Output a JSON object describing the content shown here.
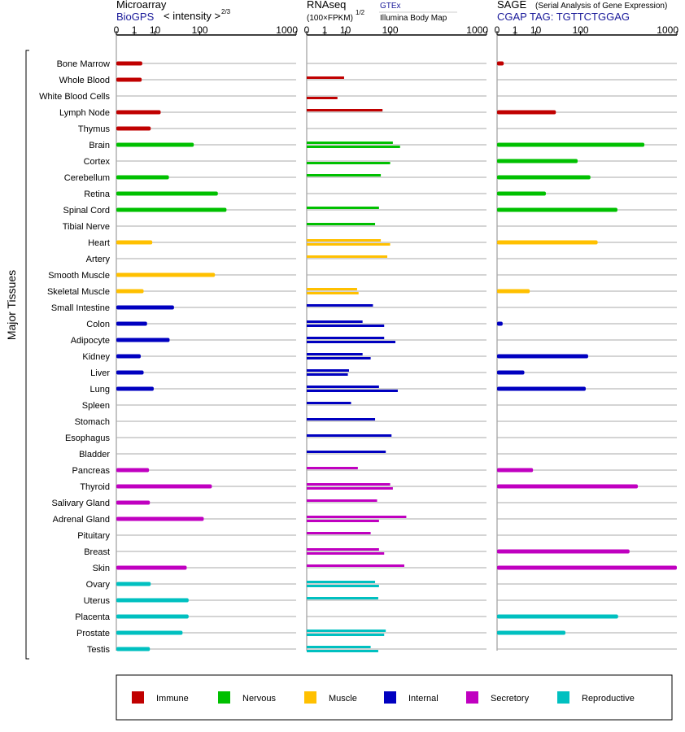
{
  "colors": {
    "Immune": "#c00000",
    "Nervous": "#00c000",
    "Muscle": "#ffc000",
    "Internal": "#0000c0",
    "Secretory": "#c000c0",
    "Reproductive": "#00c0c0"
  },
  "headers": {
    "microarray": {
      "title": "Microarray",
      "link": "BioGPS",
      "scale": "< intensity >",
      "scale_exp": "2/3"
    },
    "rnaseq": {
      "title": "RNAseq",
      "unit": "(100×FPKM)",
      "unit_exp": "1/2",
      "source1": "GTEx",
      "source2": "Illumina Body Map"
    },
    "sage": {
      "title": "SAGE",
      "subtitle": "(Serial Analysis of Gene Expression)",
      "tag": "CGAP TAG: TGTTCTGGAG"
    }
  },
  "y_axis_label": "Major Tissues",
  "chart_data": {
    "type": "bar",
    "orientation": "horizontal",
    "x_scale": "power",
    "ticks": [
      "0",
      "1",
      "10",
      "100",
      "1000"
    ],
    "tick_values": [
      0,
      1,
      10,
      100,
      1000
    ],
    "xlim": [
      0,
      1000
    ],
    "legend_position": "bottom",
    "legend": [
      "Immune",
      "Nervous",
      "Muscle",
      "Internal",
      "Secretory",
      "Reproductive"
    ],
    "categories": [
      "Bone Marrow",
      "Whole Blood",
      "White Blood Cells",
      "Lymph Node",
      "Thymus",
      "Brain",
      "Cortex",
      "Cerebellum",
      "Retina",
      "Spinal Cord",
      "Tibial Nerve",
      "Heart",
      "Artery",
      "Smooth Muscle",
      "Skeletal Muscle",
      "Small Intestine",
      "Colon",
      "Adipocyte",
      "Kidney",
      "Liver",
      "Lung",
      "Spleen",
      "Stomach",
      "Esophagus",
      "Bladder",
      "Pancreas",
      "Thyroid",
      "Salivary Gland",
      "Adrenal Gland",
      "Pituitary",
      "Breast",
      "Skin",
      "Ovary",
      "Uterus",
      "Placenta",
      "Prostate",
      "Testis"
    ],
    "groups": [
      "Immune",
      "Immune",
      "Immune",
      "Immune",
      "Immune",
      "Nervous",
      "Nervous",
      "Nervous",
      "Nervous",
      "Nervous",
      "Nervous",
      "Muscle",
      "Muscle",
      "Muscle",
      "Muscle",
      "Internal",
      "Internal",
      "Internal",
      "Internal",
      "Internal",
      "Internal",
      "Internal",
      "Internal",
      "Internal",
      "Internal",
      "Secretory",
      "Secretory",
      "Secretory",
      "Secretory",
      "Secretory",
      "Secretory",
      "Secretory",
      "Reproductive",
      "Reproductive",
      "Reproductive",
      "Reproductive",
      "Reproductive"
    ],
    "panels": [
      {
        "name": "Microarray",
        "values": [
          [
            3
          ],
          [
            2.8
          ],
          [],
          [
            15
          ],
          [
            7
          ],
          [
            80
          ],
          [],
          [
            25
          ],
          [
            180
          ],
          [
            230
          ],
          [],
          [
            8
          ],
          [],
          [
            165
          ],
          [
            3.5
          ],
          [
            33
          ],
          [
            5
          ],
          [
            26
          ],
          [
            2.5
          ],
          [
            3.5
          ],
          [
            9
          ],
          [],
          [],
          [],
          [],
          [
            6
          ],
          [
            150
          ],
          [
            6.5
          ],
          [
            115
          ],
          [],
          [],
          [
            60
          ],
          [
            7
          ],
          [
            65
          ],
          [
            65
          ],
          [
            50
          ],
          [
            6.5
          ]
        ]
      },
      {
        "name": "RNAseq",
        "values": [
          [],
          [],
          [],
          [],
          [],
          [],
          [],
          [],
          [],
          [],
          [],
          [],
          [],
          [],
          [],
          [],
          [],
          [],
          [],
          [],
          [],
          [],
          [],
          [],
          [],
          [],
          [],
          [],
          [],
          [],
          [],
          [],
          [],
          [],
          [],
          [],
          []
        ],
        "values_pairs": [
          [
            [],
            []
          ],
          [
            [],
            [
              9
            ]
          ],
          [
            [
              5
            ],
            []
          ],
          [
            [],
            [
              75
            ]
          ],
          [
            [],
            []
          ],
          [
            [
              110,
              140
            ],
            []
          ],
          [
            [
              100
            ],
            []
          ],
          [
            [],
            [
              70
            ]
          ],
          [
            [],
            []
          ],
          [
            [],
            [
              65
            ]
          ],
          [
            [],
            [
              55
            ]
          ],
          [
            [
              70,
              100
            ],
            []
          ],
          [
            [],
            [
              90
            ]
          ],
          [
            [],
            []
          ],
          [
            [
              22,
              24
            ],
            []
          ],
          [
            [],
            [
              50
            ]
          ],
          [
            [
              30,
              80
            ],
            []
          ],
          [
            [
              80,
              120
            ],
            []
          ],
          [
            [
              30,
              45
            ],
            []
          ],
          [
            [
              13,
              12
            ],
            []
          ],
          [
            [
              65,
              130
            ],
            []
          ],
          [
            [],
            [
              15
            ]
          ],
          [
            [],
            [
              55
            ]
          ],
          [
            [],
            [
              105
            ]
          ],
          [
            [],
            [
              85
            ]
          ],
          [
            [],
            [
              23
            ]
          ],
          [
            [
              100,
              110
            ],
            []
          ],
          [
            [],
            [
              60
            ]
          ],
          [
            [
              170,
              65
            ],
            []
          ],
          [
            [],
            [
              45
            ]
          ],
          [
            [
              65,
              80
            ],
            []
          ],
          [
            [],
            [
              160
            ]
          ],
          [
            [
              55,
              65
            ],
            []
          ],
          [
            [],
            [
              63
            ]
          ],
          [
            [],
            []
          ],
          [
            [
              85,
              80
            ],
            []
          ],
          [
            [
              45,
              63
            ],
            []
          ]
        ]
      },
      {
        "name": "SAGE",
        "values": [
          [
            0.05
          ],
          [],
          [],
          [
            35
          ],
          [],
          [
            550
          ],
          [
            90
          ],
          [
            140
          ],
          [
            20
          ],
          [
            300
          ],
          [],
          [
            175
          ],
          [],
          [],
          [
            6
          ],
          [],
          [
            0.03
          ],
          [],
          [
            130
          ],
          [
            3.5
          ],
          [
            120
          ],
          [],
          [],
          [],
          [],
          [
            8
          ],
          [
            480
          ],
          [],
          [],
          [],
          [
            400
          ],
          [
            1000
          ],
          [],
          [],
          [
            305
          ],
          [
            55
          ],
          []
        ]
      }
    ]
  }
}
